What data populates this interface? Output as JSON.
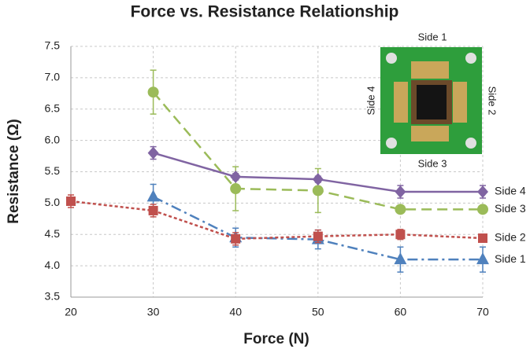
{
  "chart_data": {
    "type": "line",
    "title": "Force vs. Resistance Relationship",
    "x_label": "Force (N)",
    "y_label": "Resistance (Ω)",
    "x": [
      20,
      30,
      40,
      50,
      60,
      70
    ],
    "xlim": [
      20,
      70
    ],
    "xticks": [
      20,
      30,
      40,
      50,
      60,
      70
    ],
    "ylim": [
      3.5,
      7.5
    ],
    "yticks": [
      3.5,
      {
        "value": 4,
        "label": "4.0"
      },
      4.5,
      {
        "value": 5,
        "label": "5.0"
      },
      5.5,
      {
        "value": 6,
        "label": "6.0"
      },
      6.5,
      {
        "value": 7,
        "label": "7.0"
      },
      7.5
    ],
    "grid": true,
    "series": [
      {
        "name": "Side 1",
        "color": "#4f81bd",
        "marker": "triangle",
        "line_style": "dashdot",
        "values": [
          null,
          5.1,
          4.45,
          4.42,
          4.1,
          4.1
        ],
        "errors": [
          null,
          0.2,
          0.15,
          0.15,
          0.2,
          0.2
        ]
      },
      {
        "name": "Side 2",
        "color": "#c0504d",
        "marker": "square",
        "line_style": "dotted",
        "values": [
          5.03,
          4.88,
          4.43,
          4.47,
          4.5,
          4.44
        ],
        "errors": [
          0.1,
          0.1,
          0.1,
          0.1,
          0.08,
          0.05
        ]
      },
      {
        "name": "Side 3",
        "color": "#9bbb59",
        "marker": "circle",
        "line_style": "dashed",
        "values": [
          null,
          6.77,
          5.23,
          5.2,
          4.9,
          4.9
        ],
        "errors": [
          null,
          0.35,
          0.35,
          0.35,
          0.05,
          0.05
        ]
      },
      {
        "name": "Side 4",
        "color": "#8064a2",
        "marker": "diamond",
        "line_style": "solid",
        "values": [
          null,
          5.8,
          5.42,
          5.38,
          5.18,
          5.18
        ],
        "errors": [
          null,
          0.1,
          0.05,
          0.05,
          0.1,
          0.1
        ]
      }
    ],
    "inset_labels": {
      "top": "Side 1",
      "right": "Side 2",
      "bottom": "Side 3",
      "left": "Side 4"
    }
  }
}
